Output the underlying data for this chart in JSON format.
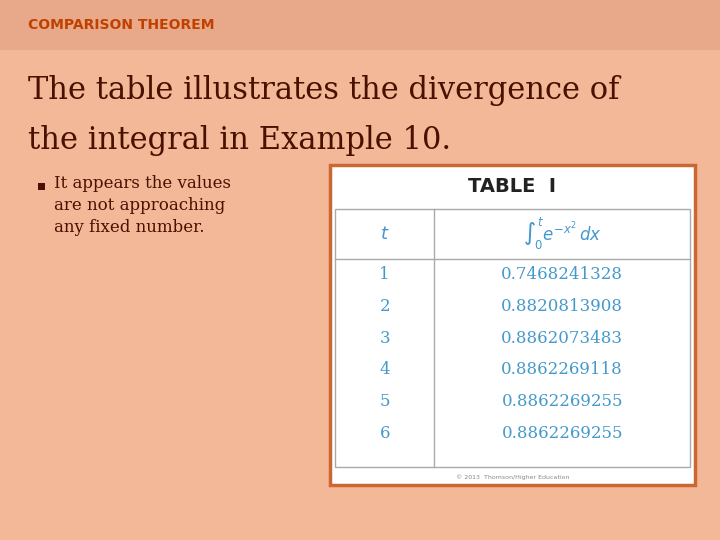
{
  "title_label": "COMPARISON THEOREM",
  "title_color": "#C04000",
  "title_bar_color": "#E8B090",
  "main_text_line1": "The table illustrates the divergence of",
  "main_text_line2": "the integral in Example 10.",
  "main_text_color": "#4A1000",
  "bullet_text_lines": [
    "It appears the values",
    "are not approaching",
    "any fixed number."
  ],
  "bullet_color": "#4A1000",
  "table_title": "TABLE  I",
  "table_title_color": "#222222",
  "table_header_t": "t",
  "table_data_color": "#4499CC",
  "table_border_color": "#CC6633",
  "table_bg": "#FFFFFF",
  "t_values": [
    "1",
    "2",
    "3",
    "4",
    "5",
    "6"
  ],
  "integral_values": [
    "0.7468241328",
    "0.8820813908",
    "0.8862073483",
    "0.8862269118",
    "0.8862269255",
    "0.8862269255"
  ],
  "bg_color": "#F2B898",
  "copyright": "© 2013  Thomson/Higher Education"
}
